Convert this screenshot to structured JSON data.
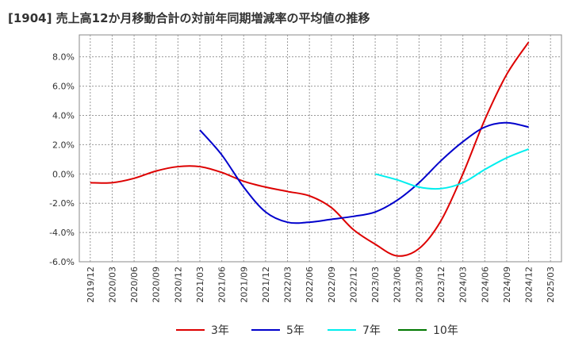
{
  "chart_data": {
    "type": "line",
    "title": "[1904]  売上高12か月移動合計の対前年同期増減率の平均値の推移",
    "x_ticks": [
      "2019/12",
      "2020/03",
      "2020/06",
      "2020/09",
      "2020/12",
      "2021/03",
      "2021/06",
      "2021/09",
      "2021/12",
      "2022/03",
      "2022/06",
      "2022/09",
      "2022/12",
      "2023/03",
      "2023/06",
      "2023/09",
      "2023/12",
      "2024/03",
      "2024/06",
      "2024/09",
      "2024/12",
      "2025/03"
    ],
    "y_ticks": [
      "8.0%",
      "6.0%",
      "4.0%",
      "2.0%",
      "0.0%",
      "-2.0%",
      "-4.0%",
      "-6.0%"
    ],
    "ylim": [
      -6.0,
      9.5
    ],
    "grid": true,
    "legend_position": "bottom",
    "series": [
      {
        "name": "3年",
        "color": "#dd0000",
        "points": [
          [
            "2019/12",
            -0.6
          ],
          [
            "2020/03",
            -0.6
          ],
          [
            "2020/06",
            -0.3
          ],
          [
            "2020/09",
            0.2
          ],
          [
            "2020/12",
            0.5
          ],
          [
            "2021/03",
            0.5
          ],
          [
            "2021/06",
            0.1
          ],
          [
            "2021/09",
            -0.5
          ],
          [
            "2021/12",
            -0.9
          ],
          [
            "2022/03",
            -1.2
          ],
          [
            "2022/06",
            -1.5
          ],
          [
            "2022/09",
            -2.3
          ],
          [
            "2022/12",
            -3.8
          ],
          [
            "2023/03",
            -4.8
          ],
          [
            "2023/06",
            -5.6
          ],
          [
            "2023/09",
            -5.1
          ],
          [
            "2023/12",
            -3.2
          ],
          [
            "2024/03",
            0.0
          ],
          [
            "2024/06",
            3.7
          ],
          [
            "2024/09",
            6.8
          ],
          [
            "2024/12",
            9.0
          ]
        ]
      },
      {
        "name": "5年",
        "color": "#0000cc",
        "points": [
          [
            "2021/03",
            3.0
          ],
          [
            "2021/06",
            1.3
          ],
          [
            "2021/09",
            -0.9
          ],
          [
            "2021/12",
            -2.6
          ],
          [
            "2022/03",
            -3.3
          ],
          [
            "2022/06",
            -3.3
          ],
          [
            "2022/09",
            -3.1
          ],
          [
            "2022/12",
            -2.9
          ],
          [
            "2023/03",
            -2.6
          ],
          [
            "2023/06",
            -1.8
          ],
          [
            "2023/09",
            -0.6
          ],
          [
            "2023/12",
            0.9
          ],
          [
            "2024/03",
            2.2
          ],
          [
            "2024/06",
            3.2
          ],
          [
            "2024/09",
            3.5
          ],
          [
            "2024/12",
            3.2
          ]
        ]
      },
      {
        "name": "7年",
        "color": "#00eeee",
        "points": [
          [
            "2023/03",
            0.0
          ],
          [
            "2023/06",
            -0.4
          ],
          [
            "2023/09",
            -0.9
          ],
          [
            "2023/12",
            -1.0
          ],
          [
            "2024/03",
            -0.6
          ],
          [
            "2024/06",
            0.3
          ],
          [
            "2024/09",
            1.1
          ],
          [
            "2024/12",
            1.7
          ]
        ]
      },
      {
        "name": "10年",
        "color": "#007700",
        "points": []
      }
    ]
  }
}
